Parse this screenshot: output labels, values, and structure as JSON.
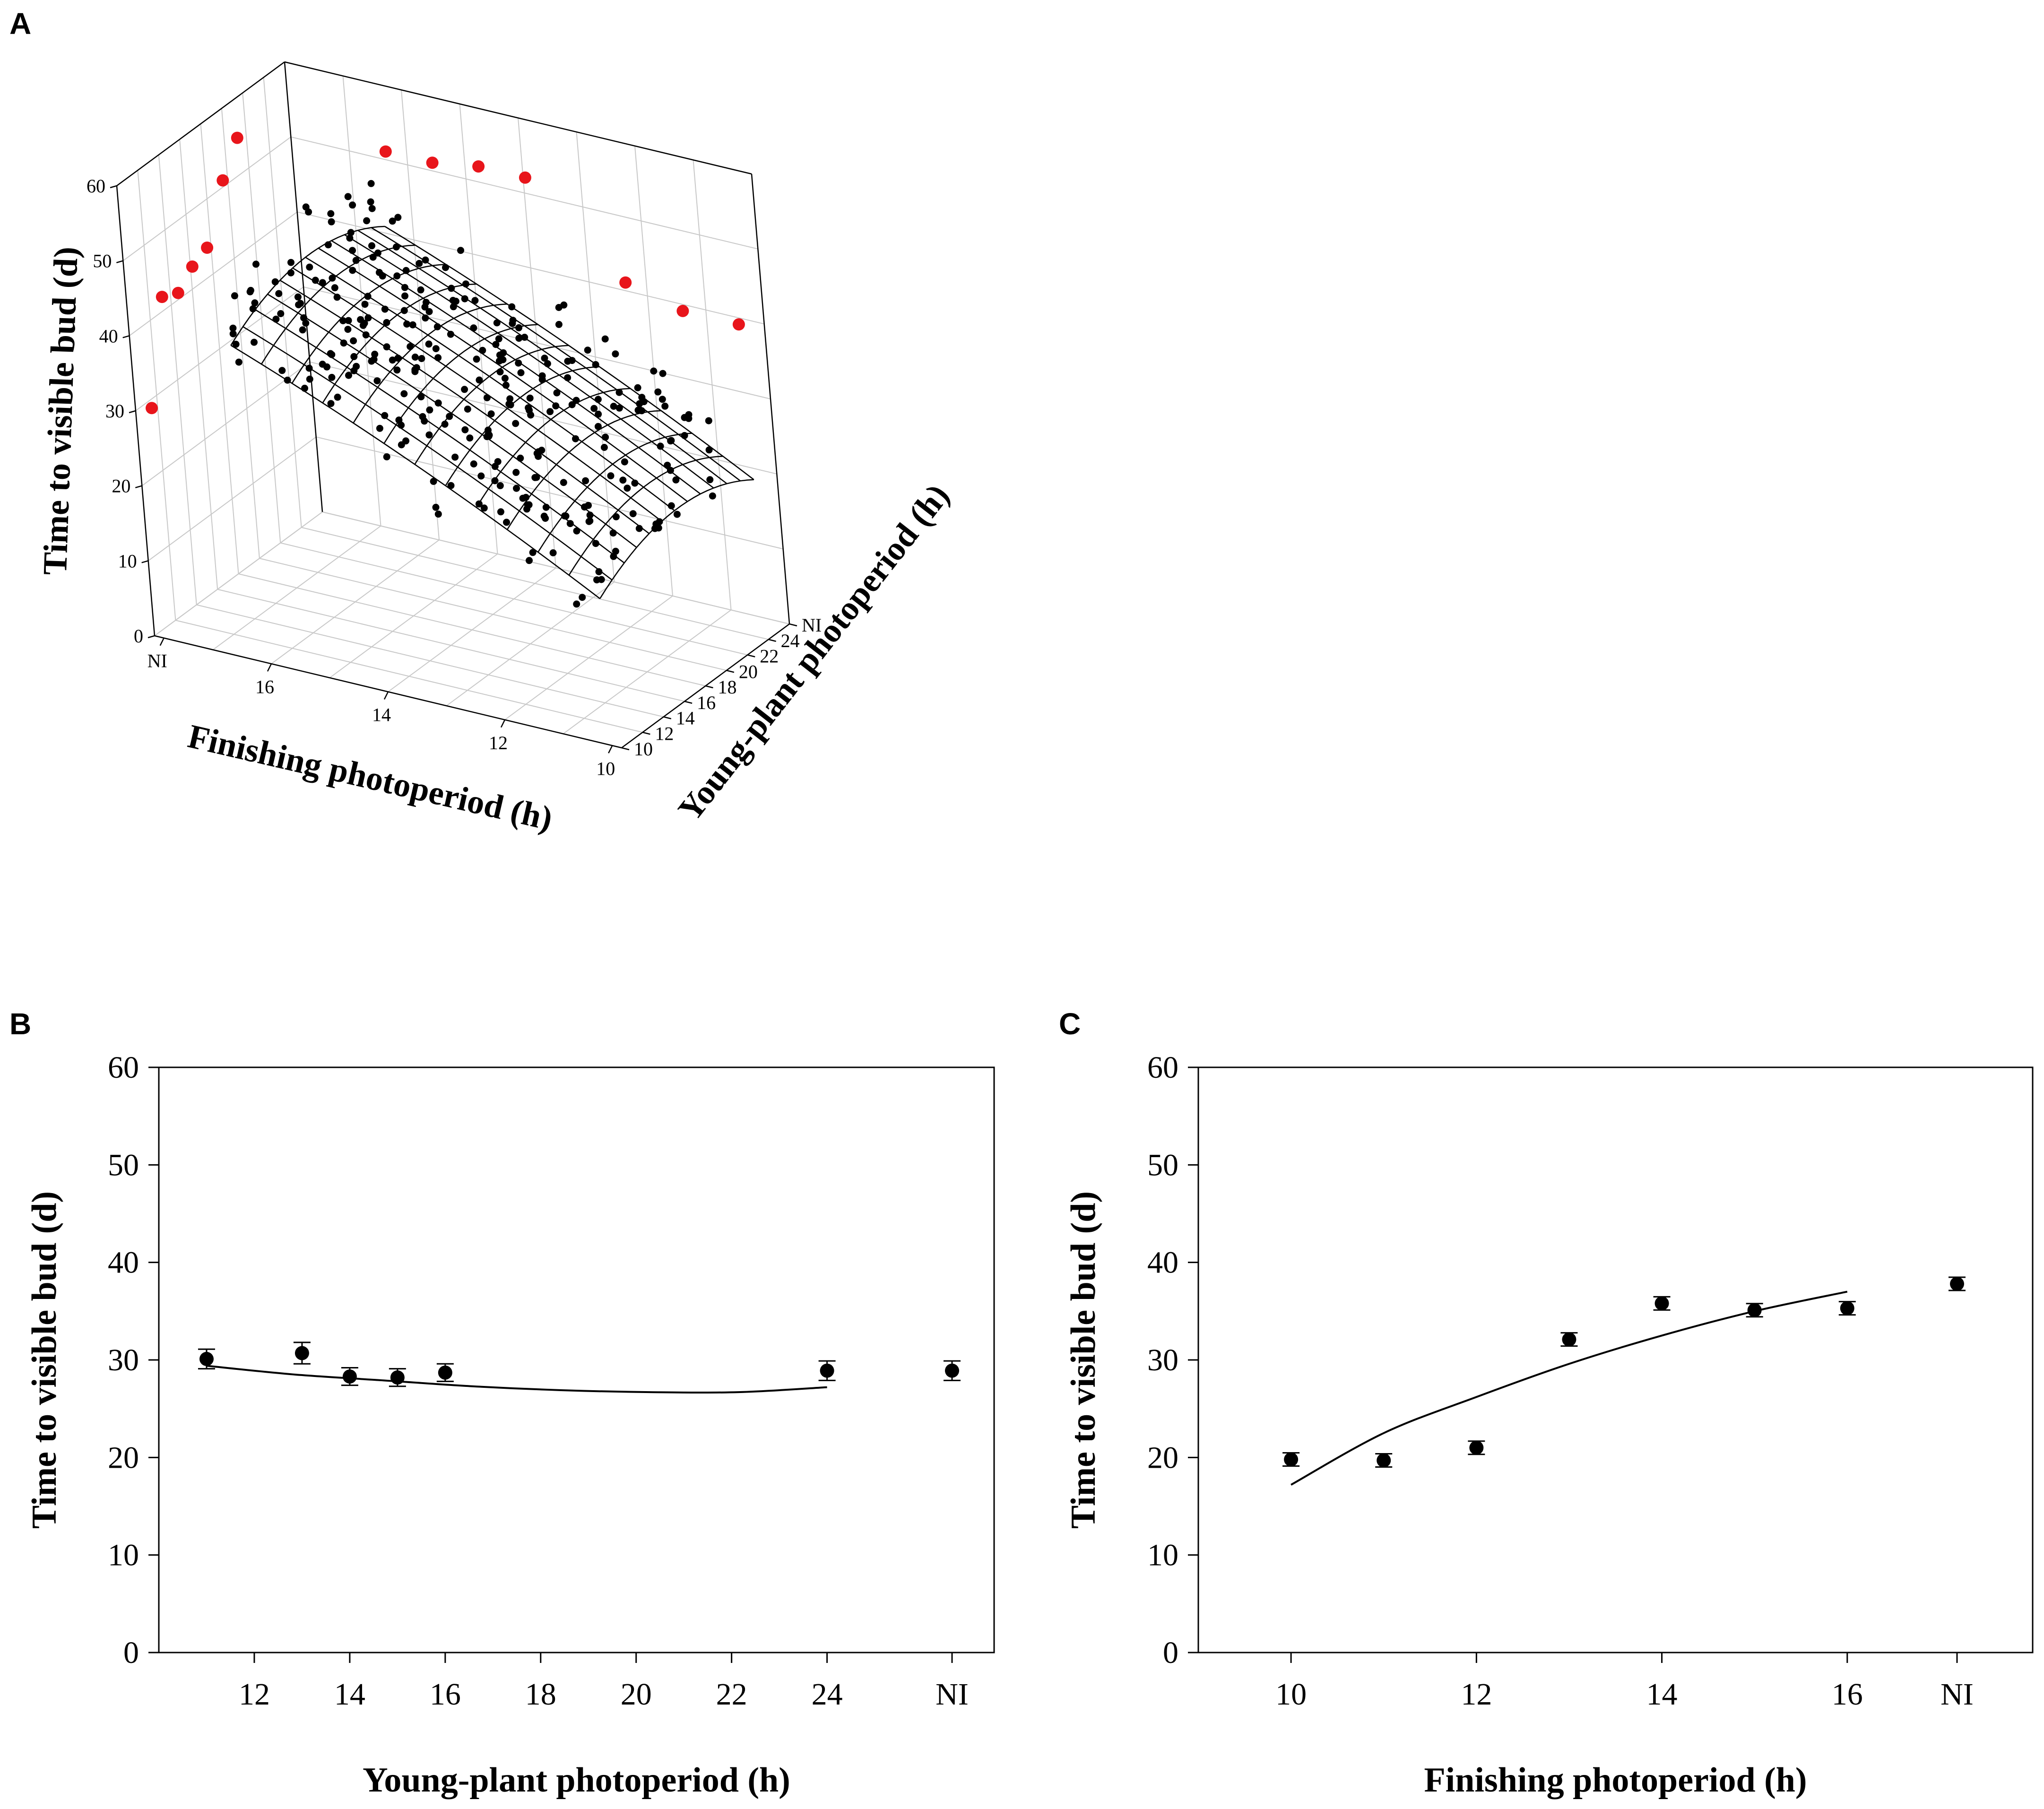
{
  "chart_data": [
    {
      "panel": "A",
      "type": "scatter",
      "subtype": "3d-surface-scatter",
      "xlabel": "Finishing photoperiod (h)",
      "ylabel": "Young-plant photoperiod (h)",
      "zlabel": "Time to visible bud (d)",
      "x_ticks": [
        "NI",
        "16",
        "14",
        "12",
        "10"
      ],
      "y_ticks": [
        "10",
        "12",
        "14",
        "16",
        "18",
        "20",
        "22",
        "24",
        "NI"
      ],
      "z_ticks": [
        "0",
        "10",
        "20",
        "30",
        "40",
        "50",
        "60"
      ],
      "zlim": [
        0,
        60
      ],
      "colors": {
        "observed": "#000000",
        "ni_points": "#e8151b",
        "surface": "#000000"
      }
    },
    {
      "panel": "B",
      "type": "scatter",
      "xlabel": "Young-plant photoperiod (h)",
      "ylabel": "Time to visible bud (d)",
      "x_ticks": [
        "12",
        "14",
        "16",
        "18",
        "20",
        "22",
        "24",
        "NI"
      ],
      "y_ticks": [
        "0",
        "10",
        "20",
        "30",
        "40",
        "50",
        "60"
      ],
      "ylim": [
        0,
        60
      ],
      "points": [
        {
          "x": 11,
          "y": 30.1,
          "err": 1.0
        },
        {
          "x": 13,
          "y": 30.7,
          "err": 1.1
        },
        {
          "x": 14,
          "y": 28.3,
          "err": 0.9
        },
        {
          "x": 15,
          "y": 28.2,
          "err": 0.9
        },
        {
          "x": 16,
          "y": 28.7,
          "err": 0.9
        },
        {
          "x": 24,
          "y": 28.9,
          "err": 1.0
        },
        {
          "x": "NI",
          "y": 28.9,
          "err": 1.0
        }
      ],
      "fit": {
        "x_range": [
          11,
          24
        ],
        "y": [
          29.4,
          28.5,
          27.9,
          27.3,
          26.9,
          26.7,
          26.7,
          27.2
        ]
      }
    },
    {
      "panel": "C",
      "type": "scatter",
      "xlabel": "Finishing photoperiod (h)",
      "ylabel": "Time to visible bud (d)",
      "x_ticks": [
        "10",
        "12",
        "14",
        "16",
        "NI"
      ],
      "y_ticks": [
        "0",
        "10",
        "20",
        "30",
        "40",
        "50",
        "60"
      ],
      "ylim": [
        0,
        60
      ],
      "points": [
        {
          "x": 10,
          "y": 19.8,
          "err": 0.4
        },
        {
          "x": 11,
          "y": 19.7,
          "err": 0.4
        },
        {
          "x": 12,
          "y": 21.0,
          "err": 0.4
        },
        {
          "x": 13,
          "y": 32.1,
          "err": 0.5
        },
        {
          "x": 14,
          "y": 35.8,
          "err": 0.5
        },
        {
          "x": 15,
          "y": 35.1,
          "err": 0.5
        },
        {
          "x": 16,
          "y": 35.3,
          "err": 0.5
        },
        {
          "x": "NI",
          "y": 37.8,
          "err": 0.5
        }
      ],
      "fit": {
        "x_range": [
          10,
          16
        ],
        "y": [
          17.2,
          22.5,
          26.2,
          29.6,
          32.5,
          35.0,
          37.0
        ]
      }
    }
  ]
}
